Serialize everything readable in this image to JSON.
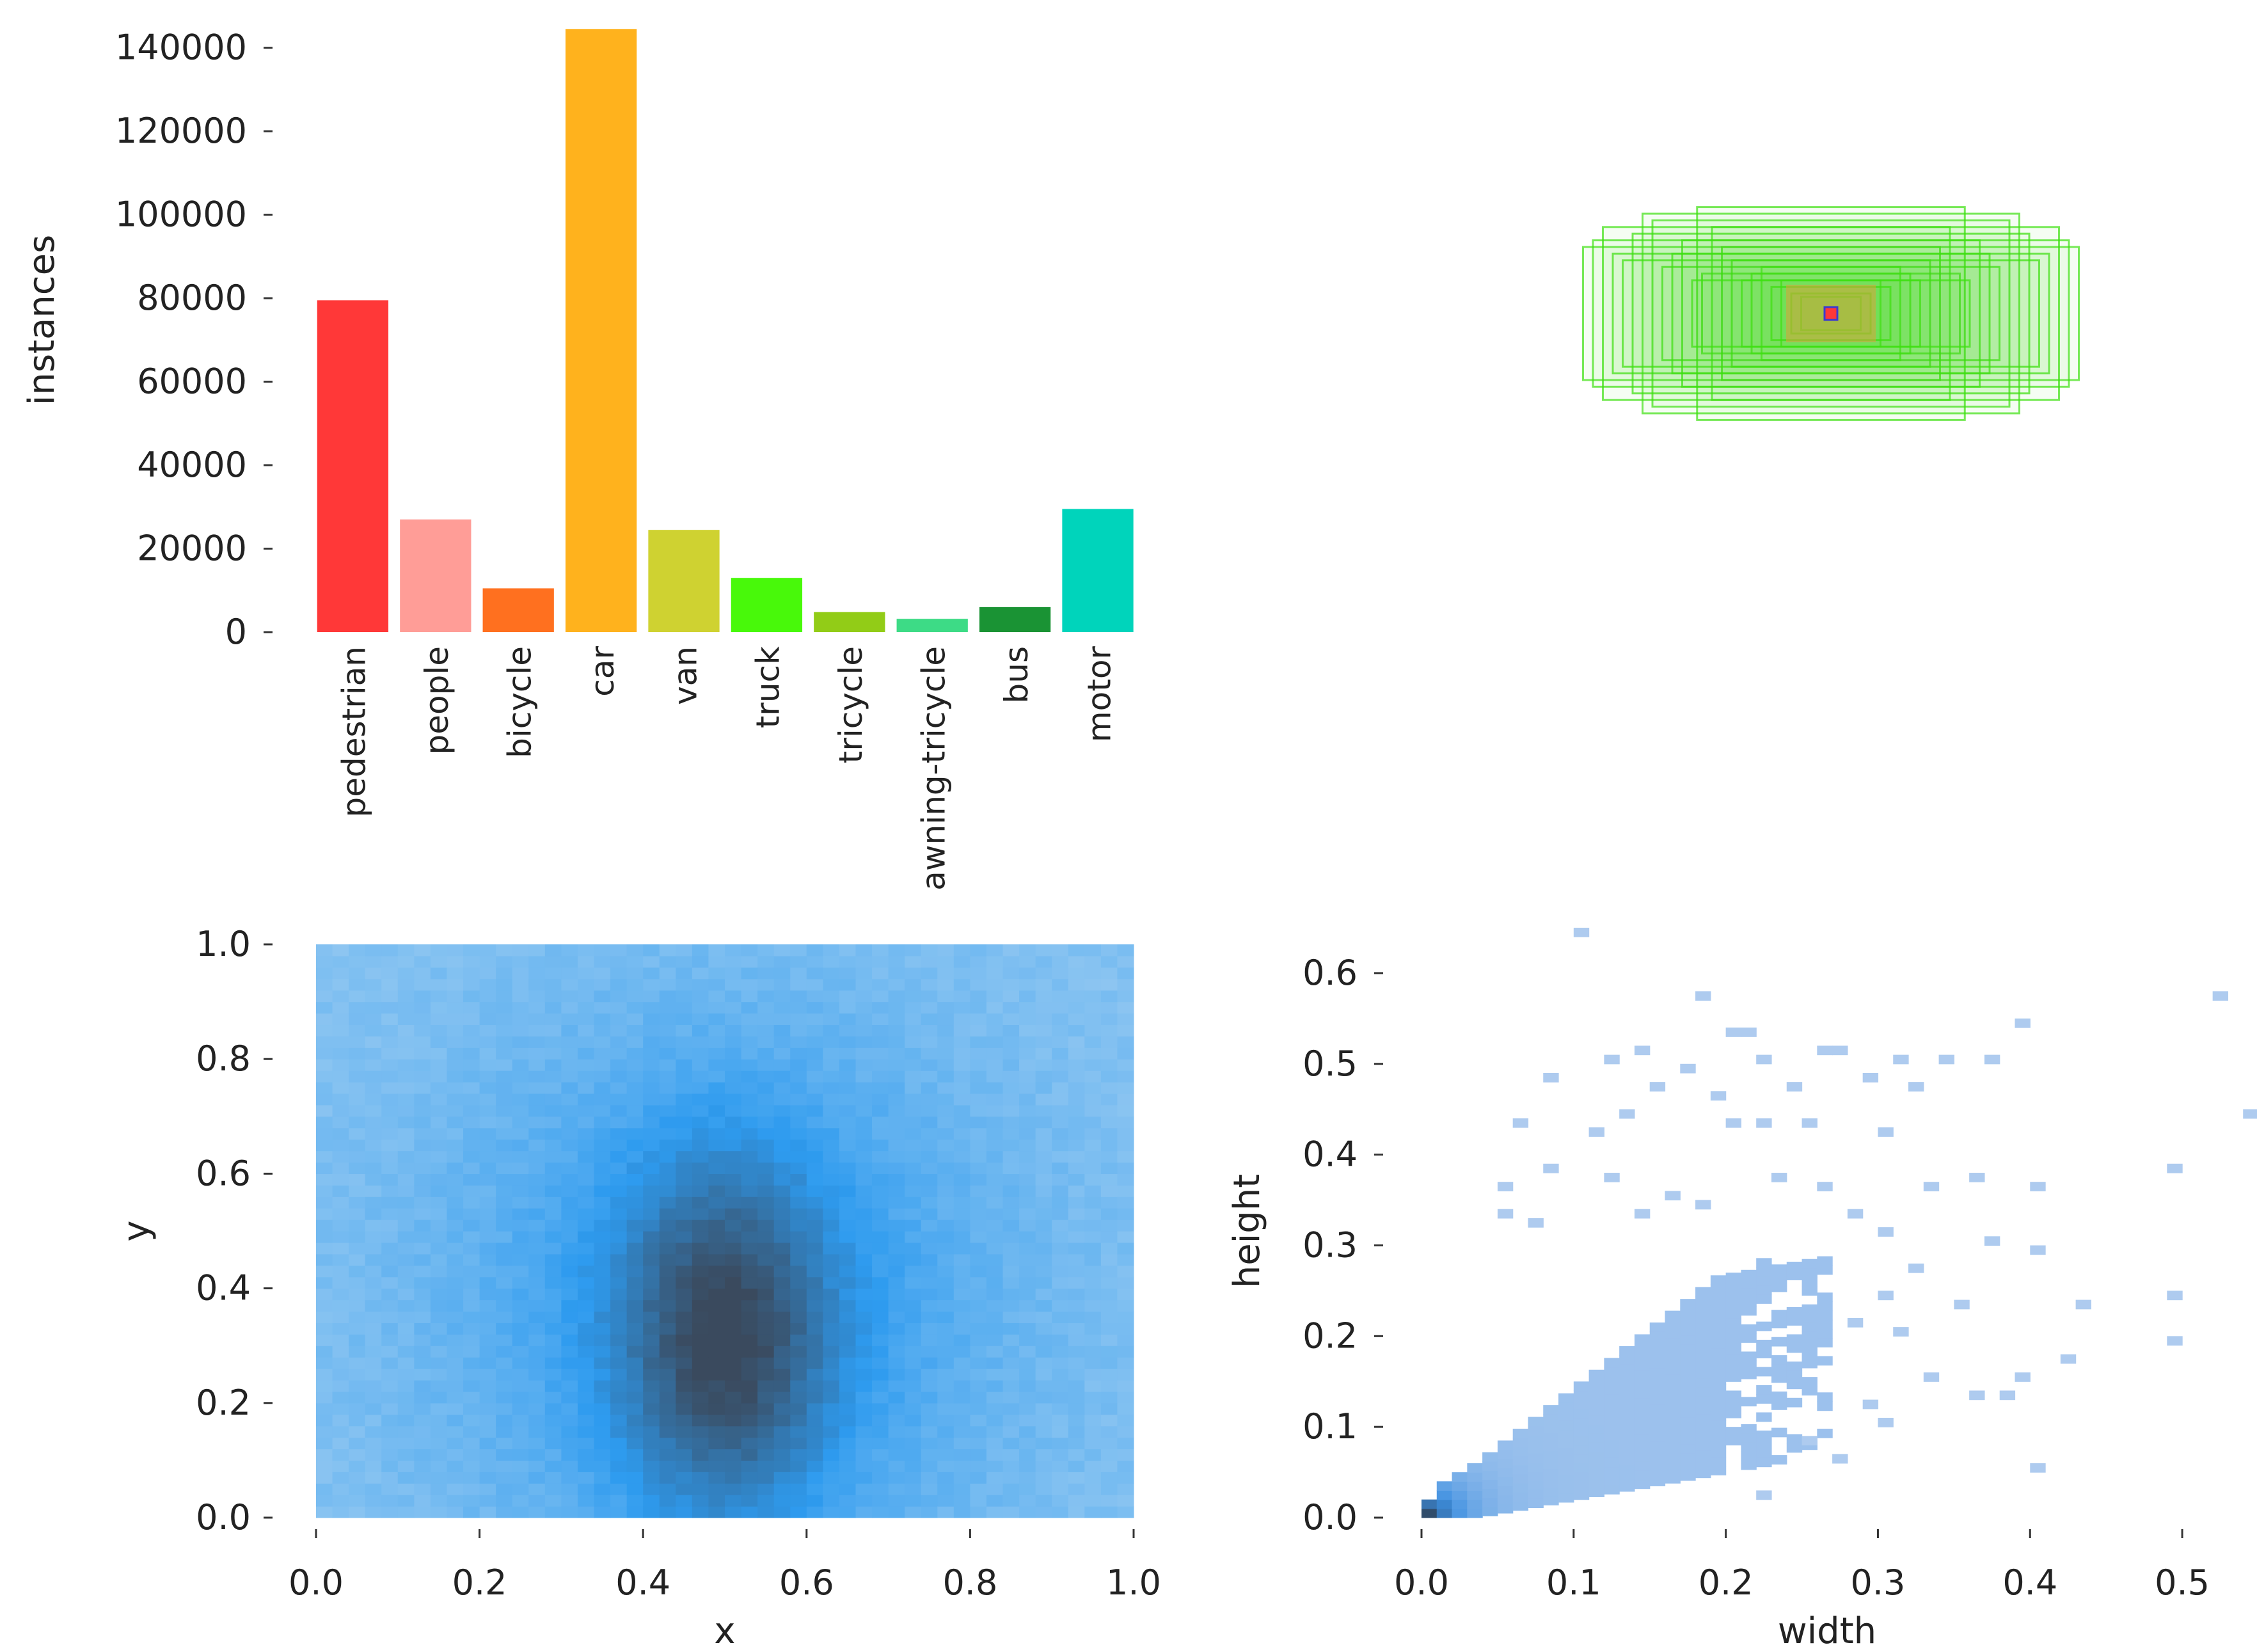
{
  "chart_data": [
    {
      "type": "bar",
      "categories": [
        "pedestrian",
        "people",
        "bicycle",
        "car",
        "van",
        "truck",
        "tricycle",
        "awning-tricycle",
        "bus",
        "motor"
      ],
      "values": [
        79500,
        27000,
        10500,
        144500,
        24500,
        13000,
        4800,
        3200,
        6000,
        29500
      ],
      "colors": [
        "#ff3838",
        "#ff9d97",
        "#ff701f",
        "#ffb21d",
        "#cfd231",
        "#48f90a",
        "#92cc17",
        "#3ddb86",
        "#1a9334",
        "#00d4bb"
      ],
      "xlabel": "",
      "ylabel": "instances",
      "yticks": [
        0,
        20000,
        40000,
        60000,
        80000,
        100000,
        120000,
        140000
      ],
      "ylim": [
        0,
        145000
      ],
      "grid": false
    },
    {
      "type": "other",
      "description_kind": "overlaid bounding boxes centred",
      "box_color": "#3de010",
      "center_color": "#ff3838",
      "box_sizes_wh": [
        [
          0.44,
          0.18
        ],
        [
          0.36,
          0.28
        ],
        [
          0.5,
          0.2
        ],
        [
          0.27,
          0.32
        ],
        [
          0.4,
          0.24
        ],
        [
          0.3,
          0.22
        ],
        [
          0.22,
          0.2
        ],
        [
          0.34,
          0.14
        ],
        [
          0.46,
          0.26
        ],
        [
          0.26,
          0.12
        ],
        [
          0.2,
          0.16
        ],
        [
          0.38,
          0.3
        ],
        [
          0.48,
          0.22
        ],
        [
          0.24,
          0.26
        ],
        [
          0.32,
          0.18
        ],
        [
          0.42,
          0.16
        ],
        [
          0.16,
          0.12
        ],
        [
          0.28,
          0.1
        ],
        [
          0.14,
          0.14
        ],
        [
          0.18,
          0.1
        ],
        [
          0.12,
          0.08
        ],
        [
          0.1,
          0.1
        ],
        [
          0.08,
          0.06
        ],
        [
          0.06,
          0.05
        ]
      ]
    },
    {
      "type": "heatmap",
      "xlabel": "x",
      "ylabel": "y",
      "xlim": [
        0,
        1
      ],
      "ylim": [
        0,
        1
      ],
      "xticks": [
        "0.0",
        "0.2",
        "0.4",
        "0.6",
        "0.8",
        "1.0"
      ],
      "yticks": [
        "0.0",
        "0.2",
        "0.4",
        "0.6",
        "0.8",
        "1.0"
      ],
      "peak": {
        "x": 0.5,
        "y": 0.3
      },
      "colors": {
        "low": "#b7d8f2",
        "mid": "#2e9bef",
        "high": "#3a4a5e"
      }
    },
    {
      "type": "heatmap",
      "xlabel": "width",
      "ylabel": "height",
      "xlim": [
        0,
        0.55
      ],
      "ylim": [
        0,
        0.65
      ],
      "xticks": [
        "0.0",
        "0.1",
        "0.2",
        "0.3",
        "0.4",
        "0.5"
      ],
      "yticks": [
        "0.0",
        "0.1",
        "0.2",
        "0.3",
        "0.4",
        "0.5",
        "0.6"
      ],
      "peak": {
        "x": 0.005,
        "y": 0.015
      },
      "colors": {
        "low": "#aecbef",
        "mid": "#3d8fe0",
        "high": "#2f4258"
      }
    }
  ]
}
